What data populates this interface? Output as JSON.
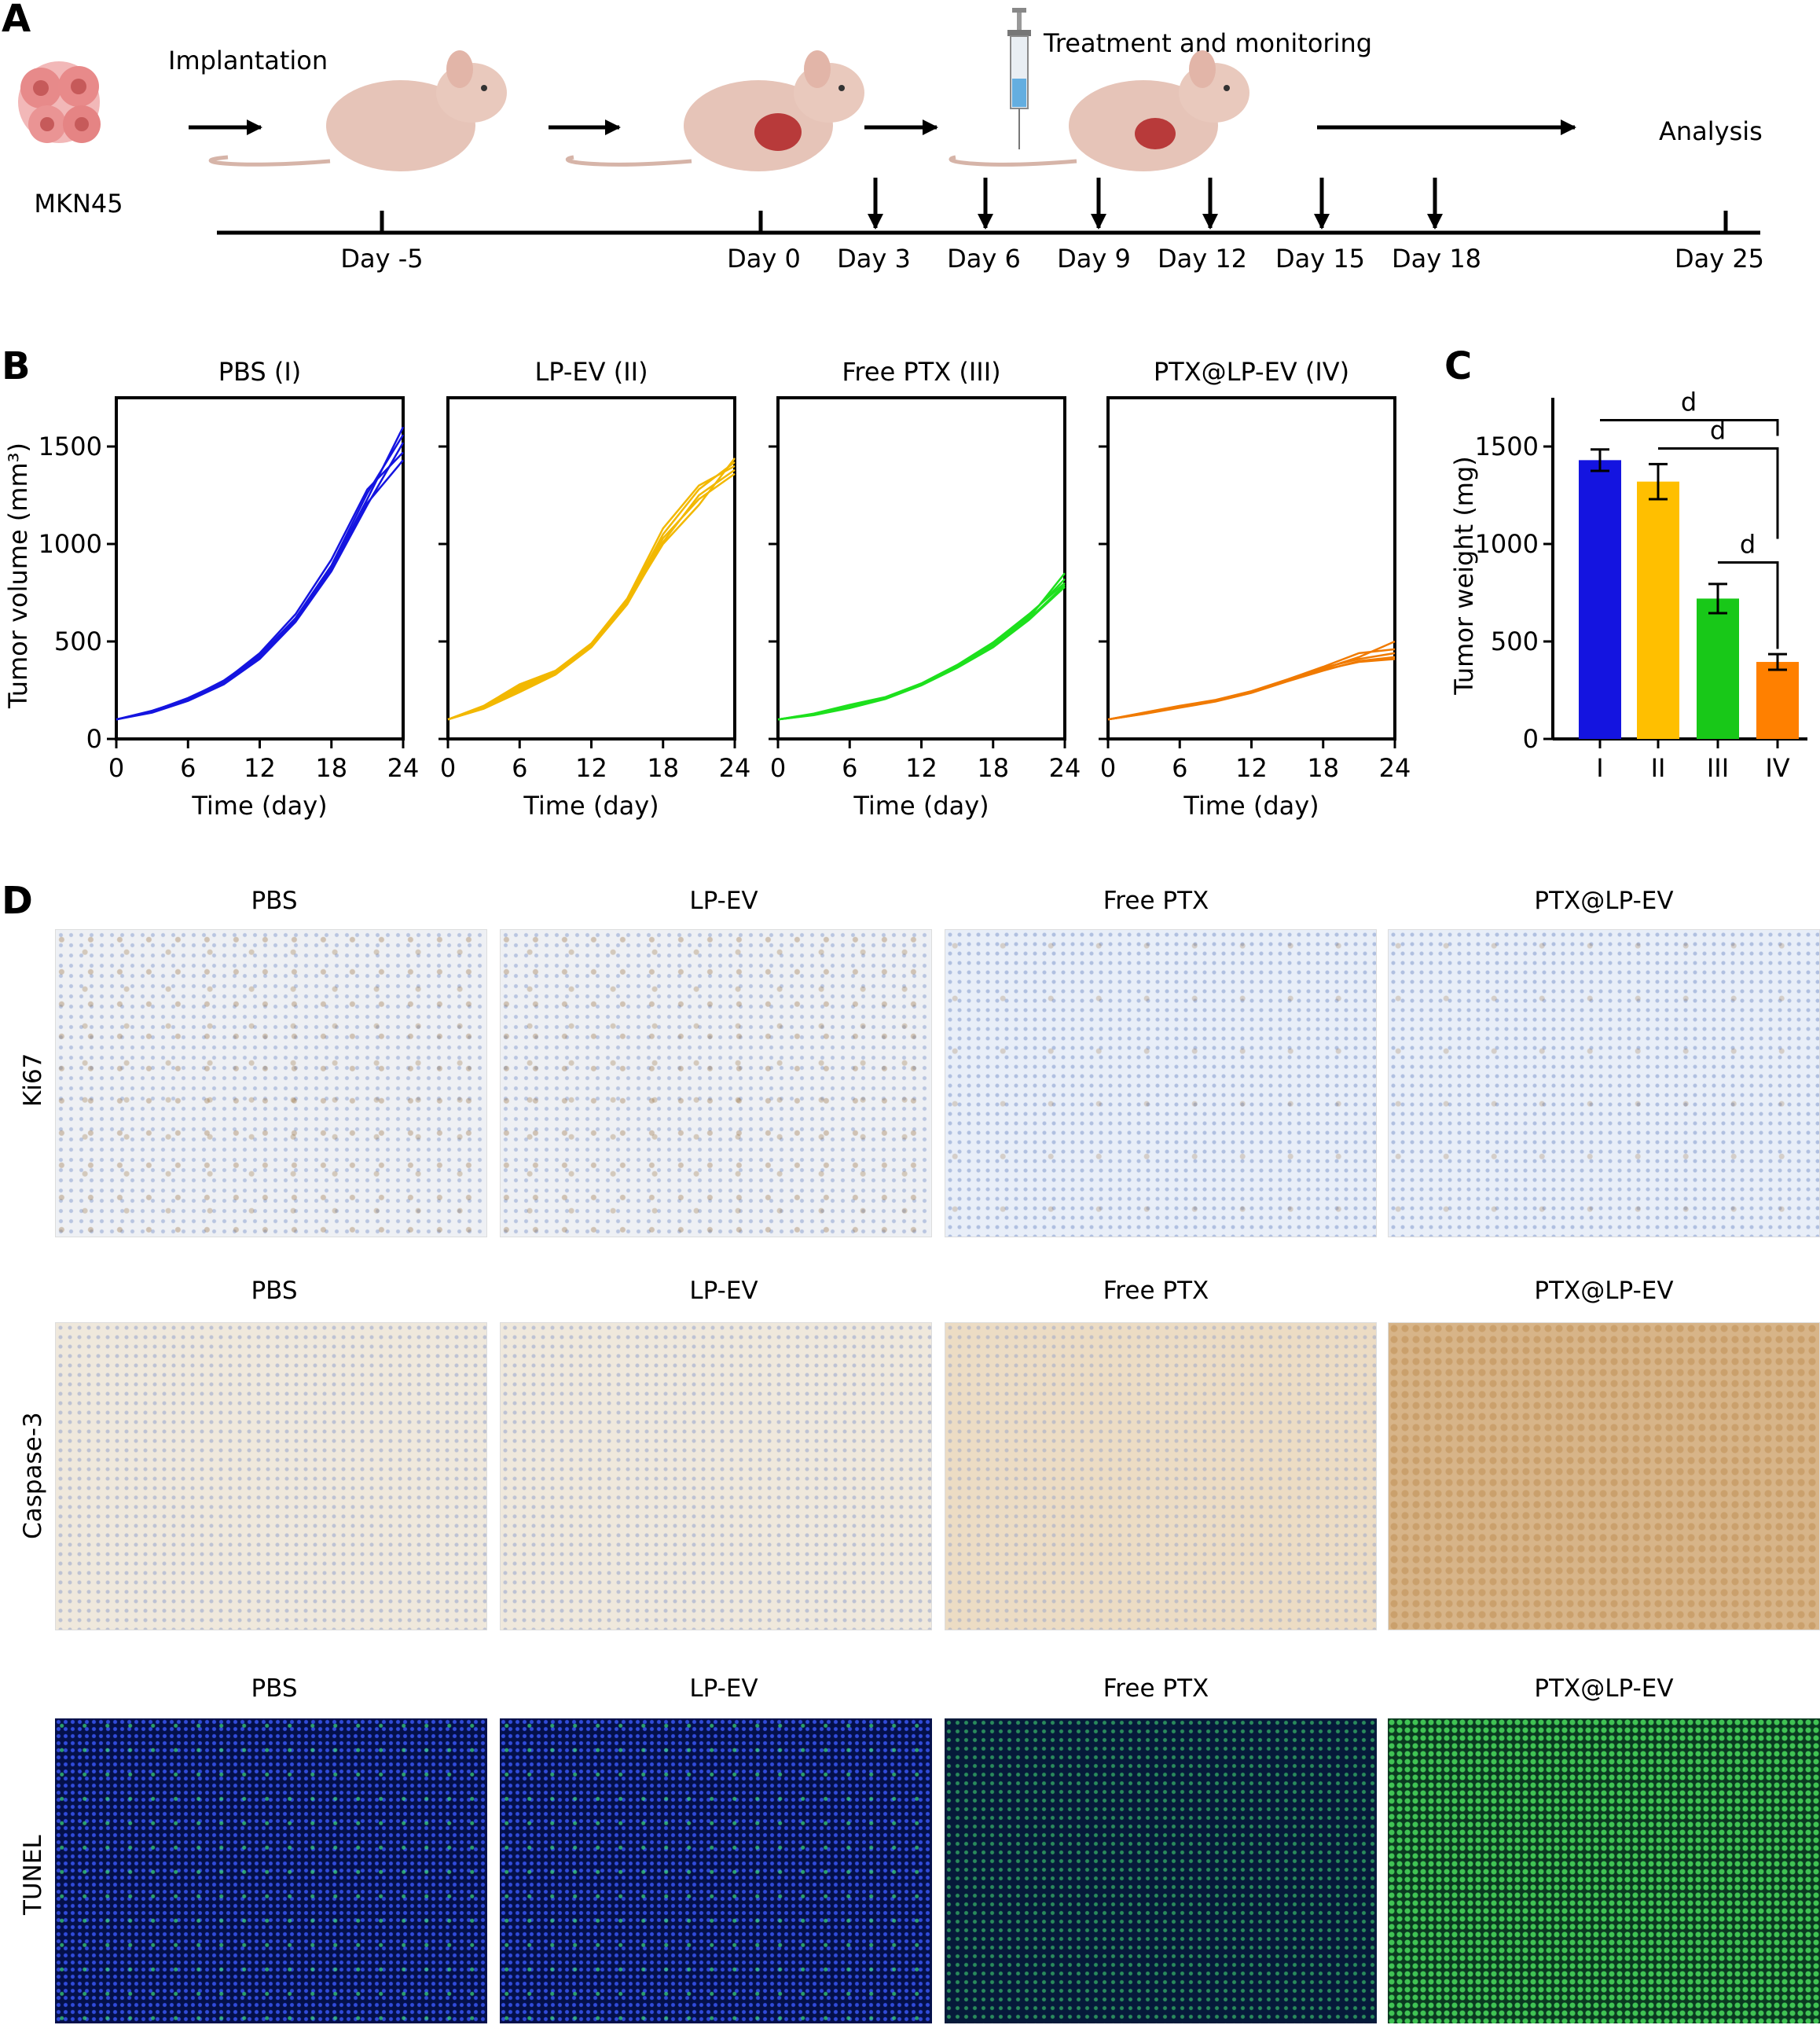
{
  "panel_letters": [
    "A",
    "B",
    "C",
    "D"
  ],
  "panel_a": {
    "cell_line": "MKN45",
    "implantation_label": "Implantation",
    "treatment_label": "Treatment and monitoring",
    "analysis_label": "Analysis",
    "timeline_days": [
      "Day -5",
      "Day 0",
      "Day 3",
      "Day 6",
      "Day 9",
      "Day 12",
      "Day 15",
      "Day 18",
      "Day 25"
    ]
  },
  "chart_data": [
    {
      "type": "line",
      "title": "PBS (I)",
      "xlabel": "Time (day)",
      "ylabel": "Tumor volume (mm³)",
      "xlim": [
        0,
        24
      ],
      "ylim": [
        0,
        1750
      ],
      "xticks": [
        0,
        6,
        12,
        18,
        24
      ],
      "yticks": [
        0,
        500,
        1000,
        1500
      ],
      "color": "#1414e0",
      "x": [
        0,
        3,
        6,
        9,
        12,
        15,
        18,
        21,
        24
      ],
      "series": [
        {
          "values": [
            100,
            140,
            200,
            290,
            420,
            610,
            880,
            1230,
            1600
          ]
        },
        {
          "values": [
            100,
            145,
            205,
            300,
            430,
            620,
            890,
            1260,
            1560
          ]
        },
        {
          "values": [
            100,
            135,
            195,
            280,
            410,
            600,
            860,
            1200,
            1520
          ]
        },
        {
          "values": [
            100,
            142,
            210,
            295,
            440,
            640,
            920,
            1280,
            1470
          ]
        },
        {
          "values": [
            100,
            138,
            198,
            285,
            415,
            605,
            870,
            1210,
            1430
          ]
        }
      ]
    },
    {
      "type": "line",
      "title": "LP-EV (II)",
      "xlabel": "Time (day)",
      "xlim": [
        0,
        24
      ],
      "ylim": [
        0,
        1750
      ],
      "xticks": [
        0,
        6,
        12,
        18,
        24
      ],
      "yticks": [
        0,
        500,
        1000,
        1500
      ],
      "color": "#f2b800",
      "x": [
        0,
        3,
        6,
        9,
        12,
        15,
        18,
        21,
        24
      ],
      "series": [
        {
          "values": [
            100,
            160,
            260,
            340,
            480,
            700,
            1000,
            1200,
            1440
          ]
        },
        {
          "values": [
            100,
            170,
            280,
            350,
            490,
            720,
            1080,
            1300,
            1400
          ]
        },
        {
          "values": [
            100,
            155,
            240,
            330,
            470,
            690,
            1010,
            1250,
            1380
          ]
        },
        {
          "values": [
            100,
            165,
            270,
            345,
            485,
            710,
            1050,
            1280,
            1420
          ]
        },
        {
          "values": [
            100,
            158,
            250,
            335,
            475,
            695,
            1030,
            1230,
            1360
          ]
        }
      ]
    },
    {
      "type": "line",
      "title": "Free PTX (III)",
      "xlabel": "Time (day)",
      "xlim": [
        0,
        24
      ],
      "ylim": [
        0,
        1750
      ],
      "xticks": [
        0,
        6,
        12,
        18,
        24
      ],
      "yticks": [
        0,
        500,
        1000,
        1500
      ],
      "color": "#1de01d",
      "x": [
        0,
        3,
        6,
        9,
        12,
        15,
        18,
        21,
        24
      ],
      "series": [
        {
          "values": [
            100,
            125,
            160,
            210,
            280,
            370,
            480,
            620,
            850
          ]
        },
        {
          "values": [
            100,
            130,
            175,
            215,
            285,
            380,
            495,
            640,
            800
          ]
        },
        {
          "values": [
            100,
            122,
            158,
            205,
            275,
            365,
            470,
            610,
            780
          ]
        },
        {
          "values": [
            100,
            128,
            165,
            212,
            282,
            375,
            485,
            630,
            820
          ]
        },
        {
          "values": [
            100,
            124,
            162,
            208,
            278,
            368,
            476,
            615,
            790
          ]
        }
      ]
    },
    {
      "type": "line",
      "title": "PTX@LP-EV (IV)",
      "xlabel": "Time (day)",
      "xlim": [
        0,
        24
      ],
      "ylim": [
        0,
        1750
      ],
      "xticks": [
        0,
        6,
        12,
        18,
        24
      ],
      "yticks": [
        0,
        500,
        1000,
        1500
      ],
      "color": "#f07a00",
      "x": [
        0,
        3,
        6,
        9,
        12,
        15,
        18,
        21,
        24
      ],
      "series": [
        {
          "values": [
            100,
            130,
            165,
            195,
            240,
            300,
            360,
            420,
            500
          ]
        },
        {
          "values": [
            100,
            135,
            170,
            200,
            245,
            305,
            370,
            440,
            460
          ]
        },
        {
          "values": [
            100,
            128,
            160,
            192,
            236,
            295,
            350,
            400,
            420
          ]
        },
        {
          "values": [
            100,
            132,
            168,
            198,
            242,
            302,
            365,
            410,
            440
          ]
        },
        {
          "values": [
            100,
            129,
            162,
            194,
            238,
            298,
            355,
            395,
            410
          ]
        }
      ]
    },
    {
      "type": "bar",
      "categories": [
        "I",
        "II",
        "III",
        "IV"
      ],
      "values": [
        1430,
        1320,
        720,
        395
      ],
      "errors": [
        55,
        90,
        75,
        40
      ],
      "colors": [
        "#1414e0",
        "#ffbf00",
        "#18c818",
        "#ff8000"
      ],
      "ylabel": "Tumor weight (mg)",
      "ylim": [
        0,
        1750
      ],
      "yticks": [
        0,
        500,
        1000,
        1500
      ],
      "significance": [
        {
          "from": "I",
          "to": "IV",
          "label": "d"
        },
        {
          "from": "II",
          "to": "IV",
          "label": "d"
        },
        {
          "from": "III",
          "to": "IV",
          "label": "d"
        }
      ]
    }
  ],
  "panel_d": {
    "groups": [
      "PBS",
      "LP-EV",
      "Free PTX",
      "PTX@LP-EV"
    ],
    "rows": [
      "Ki67",
      "Caspase-3",
      "TUNEL"
    ]
  }
}
